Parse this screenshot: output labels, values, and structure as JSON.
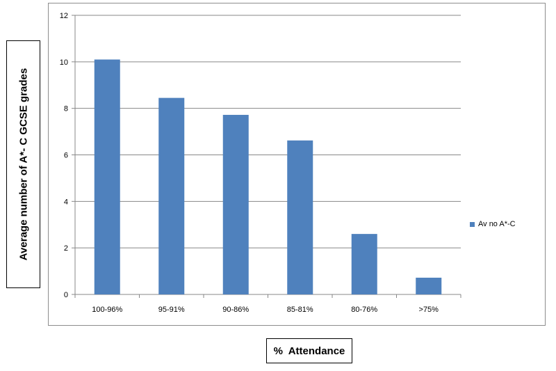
{
  "chart_data": {
    "type": "bar",
    "categories": [
      "100-96%",
      "95-91%",
      "90-86%",
      "85-81%",
      "80-76%",
      ">75%"
    ],
    "series": [
      {
        "name": "Av no A*-C",
        "values": [
          10.1,
          8.45,
          7.72,
          6.62,
          2.6,
          0.72
        ],
        "color": "#4f81bd"
      }
    ],
    "title": "",
    "xlabel": "%  Attendance",
    "ylabel": "Average number of A*- C GCSE grades",
    "ylim": [
      0,
      12
    ],
    "yticks": [
      0,
      2,
      4,
      6,
      8,
      10,
      12
    ],
    "grid": true,
    "legend_position": "right"
  }
}
